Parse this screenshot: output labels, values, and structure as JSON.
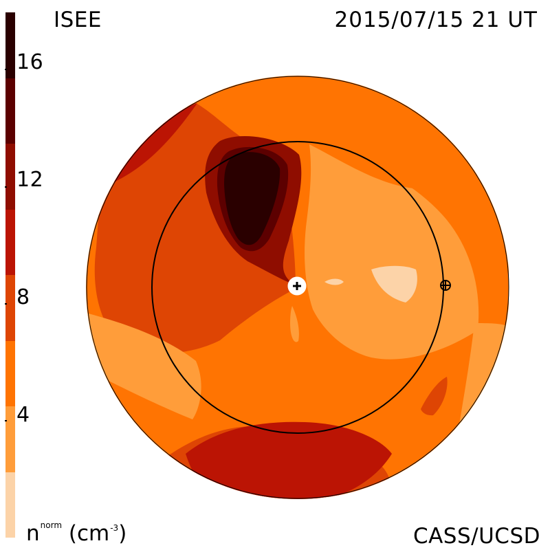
{
  "header": {
    "instrument_label": "ISEE",
    "timestamp_label": "2015/07/15 21 UT"
  },
  "footer": {
    "source_label": "CASS/UCSD",
    "quantity_symbol": "n",
    "quantity_superscript": "norm",
    "unit_label": "(cm",
    "unit_exponent": "-3",
    "unit_close": ")"
  },
  "legend": {
    "ticks": [
      "16",
      "12",
      "8",
      "4"
    ],
    "colors": [
      "#2a0000",
      "#5c0000",
      "#8f0d00",
      "#bb1404",
      "#de4504",
      "#ff7402",
      "#ff9d3a",
      "#fcd3a8"
    ]
  },
  "chart_data": {
    "type": "heatmap",
    "title": "2015/07/15 21 UT",
    "subtitle": "ISEE",
    "xlabel": "",
    "ylabel": "",
    "colorbar_label": "n norm (cm-3)",
    "colorbar_range": [
      0,
      18
    ],
    "colorbar_ticks": [
      16,
      12,
      8,
      4
    ],
    "legend_placement": "left",
    "grid": false,
    "projection": "circular sky map",
    "markers": [
      "center-plus",
      "earth-crosshair"
    ],
    "orbit_circle": true
  }
}
